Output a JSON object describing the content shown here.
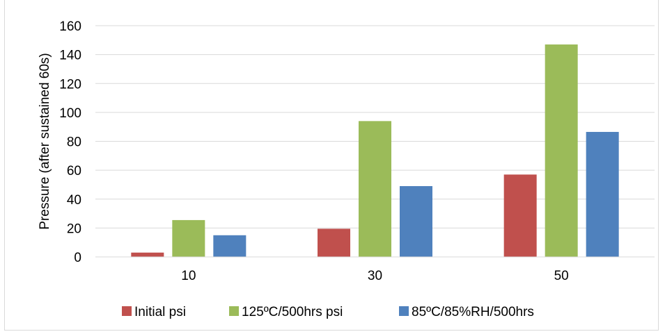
{
  "chart_data": {
    "type": "bar",
    "title": "",
    "xlabel": "",
    "ylabel": "Pressure (after sustained 60s)",
    "categories": [
      "10",
      "30",
      "50"
    ],
    "ylim": [
      0,
      160
    ],
    "yticks": [
      "0",
      "20",
      "40",
      "60",
      "80",
      "100",
      "120",
      "140",
      "160"
    ],
    "grid": "horizontal",
    "legend_position": "bottom",
    "series": [
      {
        "name": "Initial psi",
        "color": "#c0504d",
        "values": [
          3,
          19.5,
          57
        ]
      },
      {
        "name": "125ºC/500hrs psi",
        "color": "#9bbb59",
        "values": [
          25.5,
          94,
          147
        ]
      },
      {
        "name": "85ºC/85%RH/500hrs",
        "color": "#4f81bd",
        "values": [
          15,
          49,
          86.5
        ]
      }
    ]
  }
}
